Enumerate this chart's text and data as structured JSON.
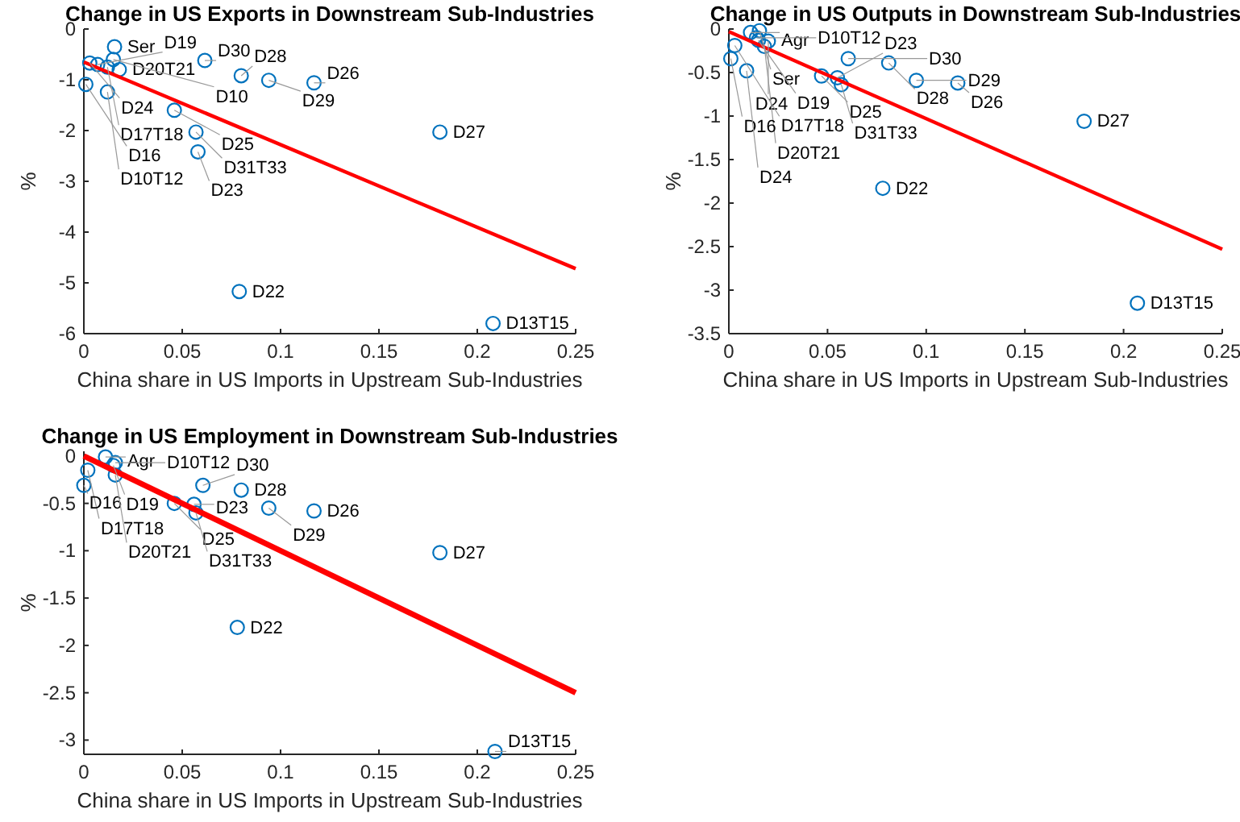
{
  "chart_data": [
    {
      "type": "scatter",
      "title": "Change in US Exports in Downstream Sub-Industries",
      "xlabel": "China share in US Imports in Upstream Sub-Industries",
      "ylabel": "%",
      "xlim": [
        0,
        0.25
      ],
      "xticks": [
        0,
        0.05,
        0.1,
        0.15,
        0.2,
        0.25
      ],
      "ylim": [
        -6,
        0
      ],
      "yticks": [
        -6,
        -5,
        -4,
        -3,
        -2,
        -1,
        0
      ],
      "grid": false,
      "marker": "circle",
      "series": [
        {
          "type": "scatter",
          "color": "#0072bd",
          "x": [
            0.0156,
            0.003,
            0.007,
            0.012,
            0.018,
            0.015,
            0.001,
            0.012,
            0.0615,
            0.08,
            0.094,
            0.117,
            0.046,
            0.057,
            0.058,
            0.181,
            0.079,
            0.208
          ],
          "values": [
            -0.35,
            -0.67,
            -0.7,
            -0.75,
            -0.8,
            -0.6,
            -1.09,
            -1.24,
            -0.62,
            -0.92,
            -1.01,
            -1.06,
            -1.6,
            -2.03,
            -2.42,
            -2.03,
            -5.17,
            -5.8
          ]
        },
        {
          "type": "line",
          "color": "#ff0000",
          "marker": "none",
          "x": [
            0,
            0.25
          ],
          "values": [
            -0.65,
            -4.72
          ]
        }
      ],
      "annotations": [
        {
          "text": "Ser",
          "x": 0.0156,
          "y": -0.35
        },
        {
          "text": "D24",
          "x": 0.003,
          "y": -0.67
        },
        {
          "text": "D19",
          "x": 0.007,
          "y": -0.7
        },
        {
          "text": "D17T18",
          "x": 0.012,
          "y": -0.75
        },
        {
          "text": "D20T21",
          "x": 0.018,
          "y": -0.8
        },
        {
          "text": "D10",
          "x": 0.015,
          "y": -0.6
        },
        {
          "text": "D16",
          "x": 0.001,
          "y": -1.09
        },
        {
          "text": "D10T12",
          "x": 0.012,
          "y": -1.24
        },
        {
          "text": "D30",
          "x": 0.0615,
          "y": -0.62
        },
        {
          "text": "D28",
          "x": 0.08,
          "y": -0.92
        },
        {
          "text": "D29",
          "x": 0.094,
          "y": -1.01
        },
        {
          "text": "D26",
          "x": 0.117,
          "y": -1.06
        },
        {
          "text": "D25",
          "x": 0.046,
          "y": -1.6
        },
        {
          "text": "D31T33",
          "x": 0.057,
          "y": -2.03
        },
        {
          "text": "D23",
          "x": 0.058,
          "y": -2.42
        },
        {
          "text": "D27",
          "x": 0.181,
          "y": -2.03
        },
        {
          "text": "D22",
          "x": 0.079,
          "y": -5.17
        },
        {
          "text": "D13T15",
          "x": 0.208,
          "y": -5.8
        }
      ]
    },
    {
      "type": "scatter",
      "title": "Change in US Outputs in Downstream Sub-Industries",
      "xlabel": "China share in US Imports in Upstream Sub-Industries",
      "ylabel": "%",
      "xlim": [
        0,
        0.25
      ],
      "xticks": [
        0,
        0.05,
        0.1,
        0.15,
        0.2,
        0.25
      ],
      "ylim": [
        -3.5,
        0
      ],
      "yticks": [
        -3.5,
        -3,
        -2.5,
        -2,
        -1.5,
        -1,
        -0.5,
        0
      ],
      "grid": false,
      "marker": "circle",
      "series": [
        {
          "type": "scatter",
          "color": "#0072bd",
          "x": [
            0.011,
            0.0155,
            0.014,
            0.015,
            0.02,
            0.003,
            0.018,
            0.001,
            0.009,
            0.047,
            0.055,
            0.057,
            0.0605,
            0.081,
            0.095,
            0.116,
            0.18,
            0.078,
            0.207
          ],
          "values": [
            -0.04,
            -0.02,
            -0.1,
            -0.13,
            -0.14,
            -0.19,
            -0.2,
            -0.34,
            -0.48,
            -0.54,
            -0.56,
            -0.64,
            -0.34,
            -0.39,
            -0.59,
            -0.62,
            -1.06,
            -1.83,
            -3.15
          ]
        },
        {
          "type": "line",
          "color": "#ff0000",
          "marker": "none",
          "x": [
            0,
            0.25
          ],
          "values": [
            -0.03,
            -2.53
          ]
        }
      ],
      "annotations": [
        {
          "text": "Agr",
          "x": 0.011,
          "y": -0.04
        },
        {
          "text": "Ser",
          "x": 0.0155,
          "y": -0.02
        },
        {
          "text": "D10T12",
          "x": 0.014,
          "y": -0.1
        },
        {
          "text": "D19",
          "x": 0.015,
          "y": -0.13
        },
        {
          "text": "D24",
          "x": 0.02,
          "y": -0.14
        },
        {
          "text": "D17T18",
          "x": 0.003,
          "y": -0.19
        },
        {
          "text": "D20T21",
          "x": 0.018,
          "y": -0.2
        },
        {
          "text": "D16",
          "x": 0.001,
          "y": -0.34
        },
        {
          "text": "D24",
          "x": 0.009,
          "y": -0.48
        },
        {
          "text": "D25",
          "x": 0.047,
          "y": -0.54
        },
        {
          "text": "D23",
          "x": 0.055,
          "y": -0.56
        },
        {
          "text": "D31T33",
          "x": 0.057,
          "y": -0.64
        },
        {
          "text": "D30",
          "x": 0.0605,
          "y": -0.34
        },
        {
          "text": "D28",
          "x": 0.081,
          "y": -0.39
        },
        {
          "text": "D29",
          "x": 0.095,
          "y": -0.59
        },
        {
          "text": "D26",
          "x": 0.116,
          "y": -0.62
        },
        {
          "text": "D27",
          "x": 0.18,
          "y": -1.06
        },
        {
          "text": "D22",
          "x": 0.078,
          "y": -1.83
        },
        {
          "text": "D13T15",
          "x": 0.207,
          "y": -3.15
        }
      ]
    },
    {
      "type": "scatter",
      "title": "Change in US Employment in Downstream Sub-Industries",
      "xlabel": "China share in US Imports in Upstream Sub-Industries",
      "ylabel": "%",
      "xlim": [
        0,
        0.25
      ],
      "xticks": [
        0,
        0.05,
        0.1,
        0.15,
        0.2,
        0.25
      ],
      "ylim": [
        -3.15,
        0.05
      ],
      "yticks": [
        -3,
        -2.5,
        -2,
        -1.5,
        -1,
        -0.5,
        0
      ],
      "grid": false,
      "marker": "circle",
      "series": [
        {
          "type": "scatter",
          "color": "#0072bd",
          "x": [
            0.011,
            0.016,
            0.015,
            0.002,
            0,
            0.016,
            0.046,
            0.056,
            0.057,
            0.0605,
            0.08,
            0.094,
            0.117,
            0.181,
            0.078,
            0.209
          ],
          "values": [
            -0.01,
            -0.07,
            -0.1,
            -0.15,
            -0.31,
            -0.2,
            -0.5,
            -0.51,
            -0.6,
            -0.31,
            -0.36,
            -0.55,
            -0.58,
            -1.02,
            -1.81,
            -3.12
          ]
        },
        {
          "type": "line",
          "color": "#ff0000",
          "marker": "none",
          "x": [
            0,
            0.25
          ],
          "values": [
            0,
            -2.5
          ]
        }
      ],
      "annotations": [
        {
          "text": "Agr",
          "x": 0.011,
          "y": -0.01
        },
        {
          "text": "D10T12",
          "x": 0.016,
          "y": -0.07
        },
        {
          "text": "D19",
          "x": 0.015,
          "y": -0.1
        },
        {
          "text": "D17T18",
          "x": 0.002,
          "y": -0.15
        },
        {
          "text": "D16",
          "x": 0,
          "y": -0.31
        },
        {
          "text": "D20T21",
          "x": 0.016,
          "y": -0.2
        },
        {
          "text": "D25",
          "x": 0.046,
          "y": -0.5
        },
        {
          "text": "D23",
          "x": 0.056,
          "y": -0.51
        },
        {
          "text": "D31T33",
          "x": 0.057,
          "y": -0.6
        },
        {
          "text": "D30",
          "x": 0.0605,
          "y": -0.31
        },
        {
          "text": "D28",
          "x": 0.08,
          "y": -0.36
        },
        {
          "text": "D29",
          "x": 0.094,
          "y": -0.55
        },
        {
          "text": "D26",
          "x": 0.117,
          "y": -0.58
        },
        {
          "text": "D27",
          "x": 0.181,
          "y": -1.02
        },
        {
          "text": "D22",
          "x": 0.078,
          "y": -1.81
        },
        {
          "text": "D13T15",
          "x": 0.209,
          "y": -3.12
        }
      ]
    }
  ]
}
